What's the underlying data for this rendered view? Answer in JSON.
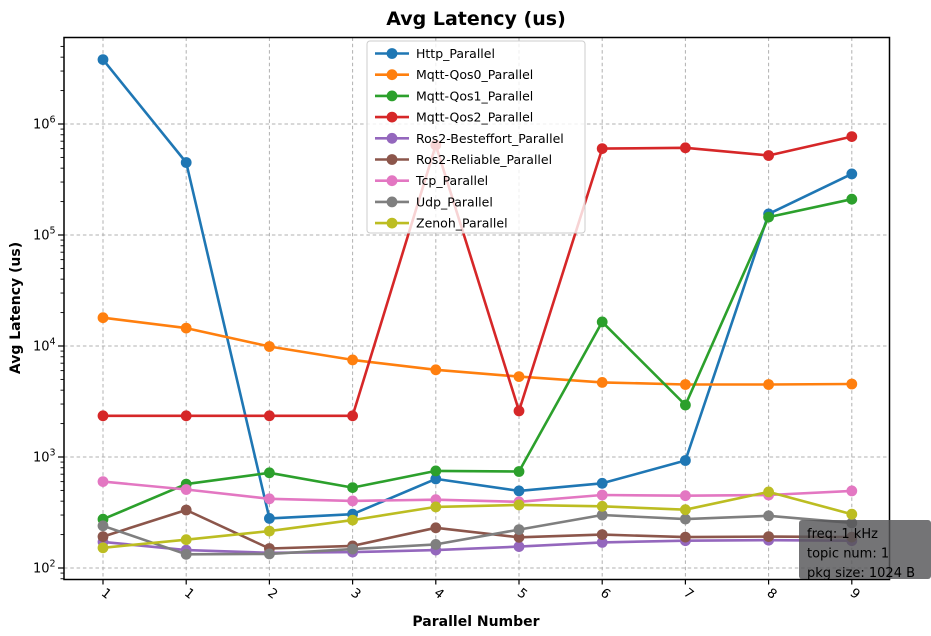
{
  "chart_data": {
    "type": "line",
    "title": "Avg Latency  (us)",
    "xlabel": "Parallel Number",
    "ylabel": "Avg Latency (us)",
    "y_scale": "log",
    "grid": true,
    "x_tick_labels": [
      "1",
      "1",
      "2",
      "3",
      "4",
      "5",
      "6",
      "7",
      "8",
      "9"
    ],
    "y_tick_exponents": [
      2,
      3,
      4,
      5,
      6
    ],
    "ylim": [
      80,
      6000000
    ],
    "legend_position": "upper center",
    "series": [
      {
        "name": "Http_Parallel",
        "color": "#1f77b4",
        "values": [
          3800000,
          450000,
          280,
          305,
          635,
          495,
          580,
          930,
          155000,
          355000
        ]
      },
      {
        "name": "Mqtt-Qos0_Parallel",
        "color": "#ff7f0e",
        "values": [
          18000,
          14500,
          9900,
          7500,
          6100,
          5300,
          4700,
          4500,
          4500,
          4550
        ]
      },
      {
        "name": "Mqtt-Qos1_Parallel",
        "color": "#2ca02c",
        "values": [
          275,
          570,
          720,
          530,
          750,
          740,
          16500,
          2940,
          145000,
          210000
        ]
      },
      {
        "name": "Mqtt-Qos2_Parallel",
        "color": "#d62728",
        "values": [
          2350,
          2350,
          2350,
          2350,
          645000,
          2600,
          600000,
          610000,
          520000,
          770000
        ]
      },
      {
        "name": "Ros2-Besteffort_Parallel",
        "color": "#9467bd",
        "values": [
          172,
          145,
          137,
          139,
          145,
          156,
          170,
          176,
          178,
          176
        ]
      },
      {
        "name": "Ros2-Reliable_Parallel",
        "color": "#8c564b",
        "values": [
          192,
          333,
          150,
          158,
          230,
          189,
          200,
          190,
          192,
          190
        ]
      },
      {
        "name": "Tcp_Parallel",
        "color": "#e377c2",
        "values": [
          600,
          510,
          420,
          402,
          412,
          395,
          455,
          448,
          455,
          495
        ]
      },
      {
        "name": "Udp_Parallel",
        "color": "#7f7f7f",
        "values": [
          240,
          133,
          134,
          148,
          163,
          222,
          300,
          276,
          295,
          255
        ]
      },
      {
        "name": "Zenoh_Parallel",
        "color": "#bcbd22",
        "values": [
          152,
          180,
          215,
          270,
          355,
          370,
          360,
          335,
          485,
          305
        ]
      }
    ],
    "annotation": {
      "lines": [
        "freq: 1 kHz",
        "topic num: 1",
        "pkg size: 1024 B"
      ]
    }
  },
  "colors": {
    "title": "#2646ab",
    "grid": "#b0b0b0",
    "axis": "#000000",
    "legend_bg": "rgba(255,255,255,0.8)",
    "legend_border": "#cccccc",
    "annotation_bg": "rgba(85,85,88,0.82)",
    "annotation_text": "#ffffff"
  }
}
